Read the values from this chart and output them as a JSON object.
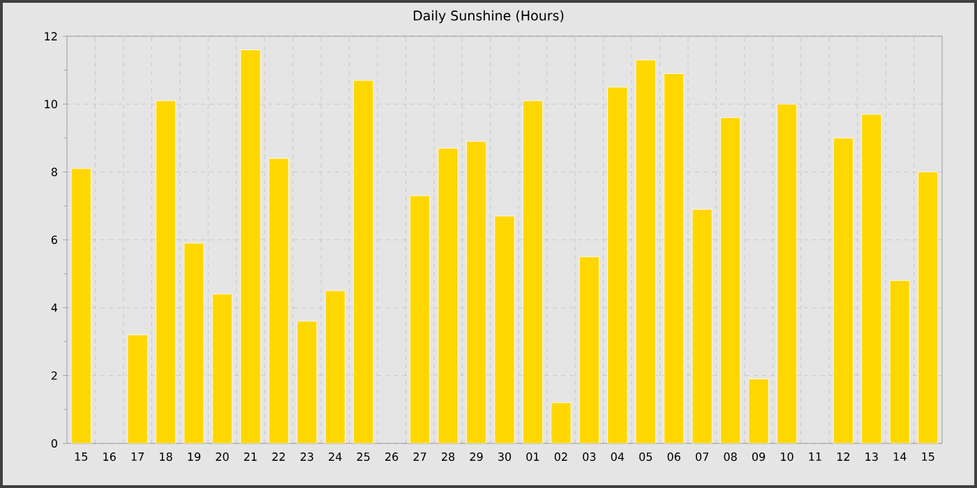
{
  "chart_data": {
    "type": "bar",
    "title": "Daily Sunshine (Hours)",
    "categories": [
      "15",
      "16",
      "17",
      "18",
      "19",
      "20",
      "21",
      "22",
      "23",
      "24",
      "25",
      "26",
      "27",
      "28",
      "29",
      "30",
      "01",
      "02",
      "03",
      "04",
      "05",
      "06",
      "07",
      "08",
      "09",
      "10",
      "11",
      "12",
      "13",
      "14",
      "15"
    ],
    "values": [
      8.1,
      null,
      3.2,
      10.1,
      5.9,
      4.4,
      11.6,
      8.4,
      3.6,
      4.5,
      10.7,
      null,
      7.3,
      8.7,
      8.9,
      6.7,
      10.1,
      1.2,
      5.5,
      10.5,
      11.3,
      10.9,
      6.9,
      9.6,
      1.9,
      10.0,
      null,
      9.0,
      9.7,
      4.8,
      8.0
    ],
    "color": "#ffd700",
    "ylim": [
      0,
      12
    ],
    "yticks": [
      0,
      2,
      4,
      6,
      8,
      10,
      12
    ],
    "grid": true
  }
}
